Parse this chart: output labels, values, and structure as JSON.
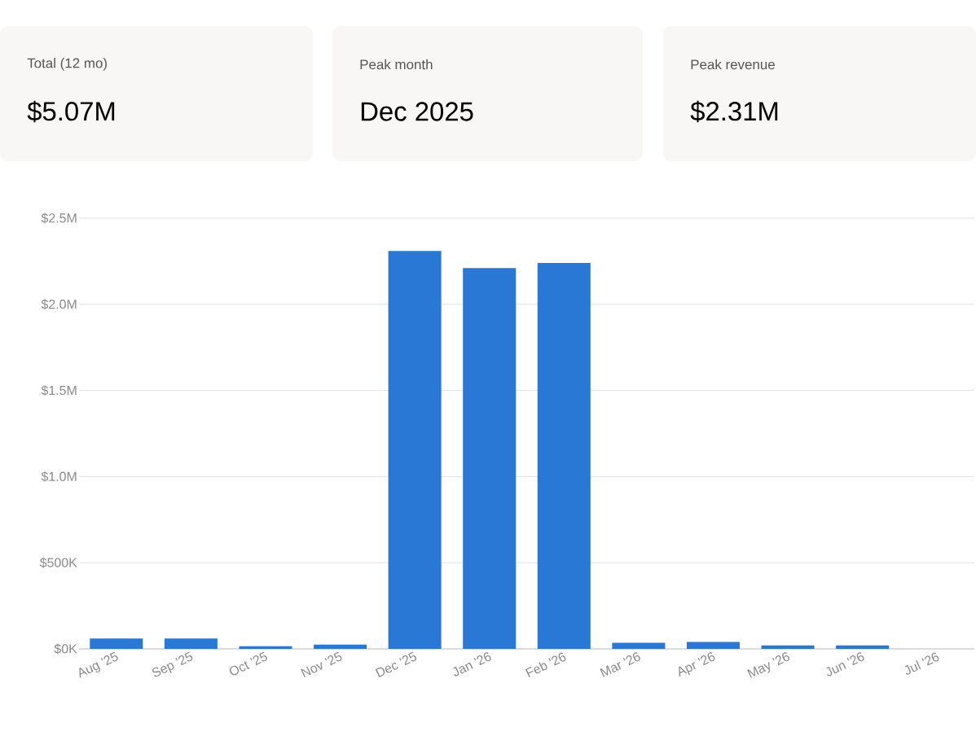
{
  "chart_data": [
    {
      "type": "other",
      "title": "Total (12 mo)",
      "subtitle": "$5.07M"
    },
    {
      "type": "other",
      "title": "Peak month",
      "subtitle": "Dec 2025"
    },
    {
      "type": "other",
      "title": "Peak revenue",
      "subtitle": "$2.31M"
    },
    {
      "type": "bar",
      "categories": [
        "Aug '25",
        "Sep '25",
        "Oct '25",
        "Nov '25",
        "Dec '25",
        "Jan '26",
        "Feb '26",
        "Mar '26",
        "Apr '26",
        "May '26",
        "Jun '26",
        "Jul '26"
      ],
      "values": [
        60000,
        60000,
        15000,
        25000,
        2310000,
        2210000,
        2240000,
        35000,
        40000,
        20000,
        20000,
        null
      ],
      "color": "#2a78d6",
      "ylim": [
        0,
        2500000
      ],
      "yticks": [
        {
          "value": 0,
          "label": "$0K"
        },
        {
          "value": 500000,
          "label": "$500K"
        },
        {
          "value": 1000000,
          "label": "$1.0M"
        },
        {
          "value": 1500000,
          "label": "$1.5M"
        },
        {
          "value": 2000000,
          "label": "$2.0M"
        },
        {
          "value": 2500000,
          "label": "$2.5M"
        }
      ],
      "grid": "y"
    }
  ]
}
